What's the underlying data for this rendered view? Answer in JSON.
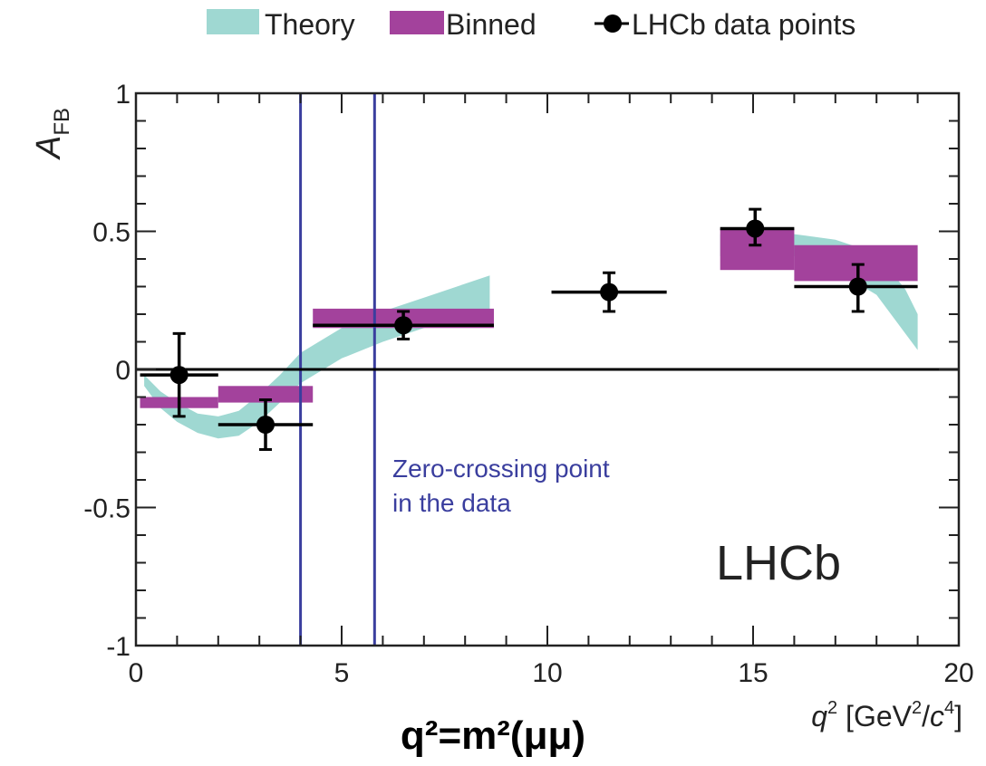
{
  "chart_data": {
    "type": "scatter",
    "xlim": [
      0,
      20
    ],
    "ylim": [
      -1,
      1
    ],
    "x_ticks": [
      0,
      5,
      10,
      15,
      20
    ],
    "x_tick_labels": [
      "0",
      "5",
      "10",
      "15",
      "20"
    ],
    "y_ticks": [
      1,
      0.5,
      0,
      -0.5,
      -1
    ],
    "y_tick_labels": [
      "1",
      "0.5",
      "0",
      "-0.5",
      "-1"
    ],
    "xlabel": "q² [GeV²/c⁴]",
    "ylabel": "A_FB",
    "legend": {
      "position": "top",
      "entries": [
        "Theory",
        "Binned",
        "LHCb data points"
      ]
    },
    "colors": {
      "theory": "#9fd8d2",
      "binned": "#a3429c",
      "data": "#000000",
      "zero_lines": "#3a3e9e"
    },
    "series": [
      {
        "name": "Theory",
        "kind": "band",
        "points": [
          {
            "x": 0.2,
            "lo": -0.06,
            "hi": -0.02
          },
          {
            "x": 0.6,
            "lo": -0.14,
            "hi": -0.08
          },
          {
            "x": 1.0,
            "lo": -0.19,
            "hi": -0.12
          },
          {
            "x": 1.5,
            "lo": -0.23,
            "hi": -0.16
          },
          {
            "x": 2.0,
            "lo": -0.25,
            "hi": -0.17
          },
          {
            "x": 2.5,
            "lo": -0.24,
            "hi": -0.15
          },
          {
            "x": 3.0,
            "lo": -0.19,
            "hi": -0.09
          },
          {
            "x": 3.5,
            "lo": -0.12,
            "hi": -0.02
          },
          {
            "x": 4.0,
            "lo": -0.05,
            "hi": 0.06
          },
          {
            "x": 5.0,
            "lo": 0.04,
            "hi": 0.15
          },
          {
            "x": 6.0,
            "lo": 0.1,
            "hi": 0.21
          },
          {
            "x": 7.0,
            "lo": 0.15,
            "hi": 0.26
          },
          {
            "x": 8.0,
            "lo": 0.19,
            "hi": 0.31
          },
          {
            "x": 8.6,
            "lo": 0.21,
            "hi": 0.34
          },
          {
            "x": 14.2,
            "lo": 0.41,
            "hi": 0.49
          },
          {
            "x": 15.0,
            "lo": 0.42,
            "hi": 0.5
          },
          {
            "x": 16.0,
            "lo": 0.41,
            "hi": 0.49
          },
          {
            "x": 17.0,
            "lo": 0.36,
            "hi": 0.47
          },
          {
            "x": 18.0,
            "lo": 0.27,
            "hi": 0.42
          },
          {
            "x": 18.7,
            "lo": 0.13,
            "hi": 0.29
          },
          {
            "x": 19.0,
            "lo": 0.07,
            "hi": 0.2
          }
        ],
        "gaps": [
          [
            8.6,
            14.2
          ]
        ]
      },
      {
        "name": "Binned",
        "kind": "boxes",
        "bins": [
          {
            "x0": 0.1,
            "x1": 2.0,
            "lo": -0.14,
            "hi": -0.1
          },
          {
            "x0": 2.0,
            "x1": 4.3,
            "lo": -0.12,
            "hi": -0.06
          },
          {
            "x0": 4.3,
            "x1": 8.7,
            "lo": 0.15,
            "hi": 0.22
          },
          {
            "x0": 14.2,
            "x1": 16.0,
            "lo": 0.36,
            "hi": 0.51
          },
          {
            "x0": 16.0,
            "x1": 19.0,
            "lo": 0.32,
            "hi": 0.45
          }
        ]
      },
      {
        "name": "LHCb data points",
        "kind": "points",
        "points": [
          {
            "x": 1.05,
            "y": -0.02,
            "xlo": 0.1,
            "xhi": 2.0,
            "ylo": -0.17,
            "yhi": 0.13
          },
          {
            "x": 3.15,
            "y": -0.2,
            "xlo": 2.0,
            "xhi": 4.3,
            "ylo": -0.29,
            "yhi": -0.11
          },
          {
            "x": 6.5,
            "y": 0.16,
            "xlo": 4.3,
            "xhi": 8.7,
            "ylo": 0.11,
            "yhi": 0.21
          },
          {
            "x": 11.5,
            "y": 0.28,
            "xlo": 10.1,
            "xhi": 12.9,
            "ylo": 0.21,
            "yhi": 0.35
          },
          {
            "x": 15.05,
            "y": 0.51,
            "xlo": 14.2,
            "xhi": 16.0,
            "ylo": 0.45,
            "yhi": 0.58
          },
          {
            "x": 17.55,
            "y": 0.3,
            "xlo": 16.0,
            "xhi": 19.0,
            "ylo": 0.21,
            "yhi": 0.38
          }
        ]
      }
    ],
    "vertical_lines": [
      4.0,
      5.8
    ],
    "horizontal_line": 0,
    "annotations": [
      "Zero-crossing point",
      "in the data"
    ],
    "watermark": "LHCb",
    "caption": "q²=m²(μμ)",
    "grid": false
  }
}
